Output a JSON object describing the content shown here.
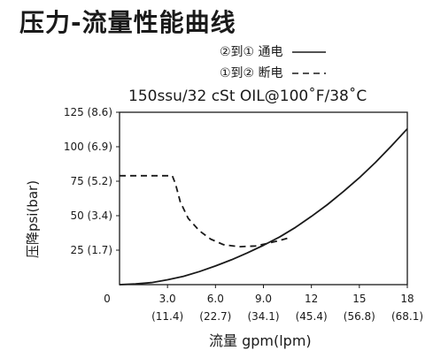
{
  "chart_data": {
    "type": "line",
    "title": "压力-流量性能曲线",
    "subtitle": "150ssu/32 cSt OIL@100˚F/38˚C",
    "xlabel": "流量 gpm(lpm)",
    "ylabel": "压降psi(bar)",
    "xlim": [
      0,
      18
    ],
    "ylim": [
      0,
      125
    ],
    "grid": false,
    "legend_placement": "top-right",
    "y_ticks": [
      {
        "value": 25,
        "label": "25 (1.7)"
      },
      {
        "value": 50,
        "label": "50 (3.4)"
      },
      {
        "value": 75,
        "label": "75 (5.2)"
      },
      {
        "value": 100,
        "label": "100 (6.9)"
      },
      {
        "value": 125,
        "label": "125 (8.6)"
      }
    ],
    "x_ticks": [
      {
        "value": 0,
        "label": "0",
        "sub": ""
      },
      {
        "value": 3,
        "label": "3.0",
        "sub": "(11.4)"
      },
      {
        "value": 6,
        "label": "6.0",
        "sub": "(22.7)"
      },
      {
        "value": 9,
        "label": "9.0",
        "sub": "(34.1)"
      },
      {
        "value": 12,
        "label": "12",
        "sub": "(45.4)"
      },
      {
        "value": 15,
        "label": "15",
        "sub": "(56.8)"
      },
      {
        "value": 18,
        "label": "18",
        "sub": "(68.1)"
      }
    ],
    "series": [
      {
        "name": "②到①通电",
        "style": "solid",
        "x": [
          0,
          1,
          2,
          3,
          4,
          5,
          6,
          7,
          8,
          9,
          10,
          11,
          12,
          13,
          14,
          15,
          16,
          17,
          18
        ],
        "y": [
          0,
          0.5,
          1.5,
          3.5,
          6,
          9.5,
          13.5,
          18,
          23,
          28.5,
          34.5,
          41.5,
          49.5,
          58,
          67.5,
          77.5,
          88.5,
          100.5,
          113
        ]
      },
      {
        "name": "①到②断电",
        "style": "dashed",
        "x": [
          0,
          3.3,
          3.5,
          3.8,
          4.3,
          5,
          5.7,
          6.5,
          7.5,
          8.5,
          9.3,
          10,
          10.6
        ],
        "y": [
          79,
          79,
          73,
          60,
          48,
          39,
          33,
          29,
          27.5,
          28,
          30,
          32,
          34
        ]
      }
    ]
  },
  "legend": {
    "solid_label": "②到① 通电",
    "dashed_label": "①到② 断电"
  },
  "colors": {
    "line": "#1a1a1a"
  }
}
